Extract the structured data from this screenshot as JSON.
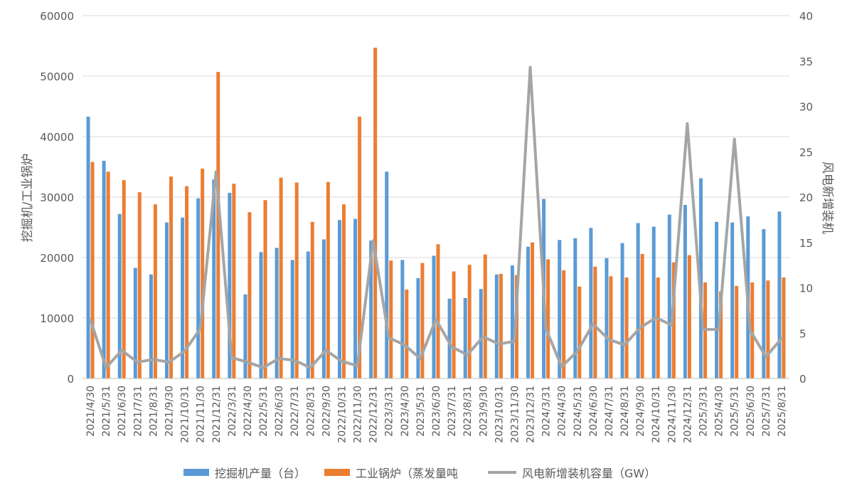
{
  "chart_data": {
    "type": "bar",
    "title": "",
    "categories": [
      "2021/4/30",
      "2021/5/31",
      "2021/6/30",
      "2021/7/31",
      "2021/8/31",
      "2021/9/30",
      "2021/10/31",
      "2021/11/30",
      "2021/12/31",
      "2022/3/31",
      "2022/4/30",
      "2022/5/31",
      "2022/6/30",
      "2022/7/31",
      "2022/8/31",
      "2022/9/30",
      "2022/10/31",
      "2022/11/30",
      "2022/12/31",
      "2023/3/31",
      "2023/4/30",
      "2023/5/31",
      "2023/6/30",
      "2023/7/31",
      "2023/8/31",
      "2023/9/30",
      "2023/10/31",
      "2023/11/30",
      "2023/12/31",
      "2024/3/31",
      "2024/4/30",
      "2024/5/31",
      "2024/6/30",
      "2024/7/31",
      "2024/8/31",
      "2024/9/30",
      "2024/10/31",
      "2024/11/30",
      "2024/12/31",
      "2025/3/31",
      "2025/4/30",
      "2025/5/31",
      "2025/6/30",
      "2025/7/31",
      "2025/8/31"
    ],
    "series": [
      {
        "name": "挖掘机产量（台）",
        "type": "bar",
        "axis": "left",
        "color": "#5B9BD5",
        "values": [
          43300,
          36000,
          27200,
          18300,
          17200,
          25800,
          26600,
          29800,
          32900,
          30700,
          13900,
          20900,
          21600,
          19600,
          21000,
          23000,
          26200,
          26400,
          22800,
          34200,
          19600,
          16600,
          20300,
          13200,
          13300,
          14800,
          17200,
          18700,
          21800,
          29700,
          22900,
          23200,
          24900,
          19900,
          22400,
          25700,
          25100,
          27100,
          28700,
          33100,
          25900,
          25800,
          26800,
          24700,
          27600
        ]
      },
      {
        "name": "工业锅炉（蒸发量吨",
        "type": "bar",
        "axis": "left",
        "color": "#ED7D31",
        "values": [
          35800,
          34200,
          32800,
          30800,
          28800,
          33400,
          31800,
          34700,
          50700,
          32200,
          27500,
          29500,
          33200,
          32400,
          25900,
          32500,
          28800,
          43300,
          54700,
          19500,
          14700,
          19100,
          22200,
          17700,
          18800,
          20500,
          17300,
          17100,
          22500,
          19700,
          17900,
          15200,
          18500,
          16900,
          16700,
          20600,
          16700,
          19200,
          20400,
          15900,
          14400,
          15300,
          15900,
          16200,
          16700
        ]
      },
      {
        "name": "风电新增装机容量（GW）",
        "type": "line",
        "axis": "right",
        "color": "#A5A5A5",
        "values": [
          6.5,
          1.2,
          3.1,
          1.8,
          2.1,
          1.8,
          3.0,
          5.5,
          22.8,
          2.3,
          1.8,
          1.2,
          2.2,
          2.0,
          1.2,
          3.1,
          1.9,
          1.4,
          15.2,
          4.5,
          3.7,
          2.2,
          6.5,
          3.5,
          2.6,
          4.6,
          3.8,
          4.1,
          34.3,
          5.5,
          1.3,
          3.0,
          6.0,
          4.3,
          3.7,
          5.6,
          6.7,
          5.9,
          28.1,
          5.4,
          5.4,
          26.4,
          5.3,
          2.4,
          4.4
        ]
      }
    ],
    "left_axis": {
      "label": "挖掘机/工业锅炉",
      "ylim": [
        0,
        60000
      ],
      "ticks": [
        "0",
        "10000",
        "20000",
        "30000",
        "40000",
        "50000",
        "60000"
      ]
    },
    "right_axis": {
      "label": "风电新增装机",
      "ylim": [
        0,
        40
      ],
      "ticks": [
        "0",
        "5",
        "10",
        "15",
        "20",
        "25",
        "30",
        "35",
        "40"
      ]
    },
    "grid": true,
    "legend_position": "bottom"
  }
}
